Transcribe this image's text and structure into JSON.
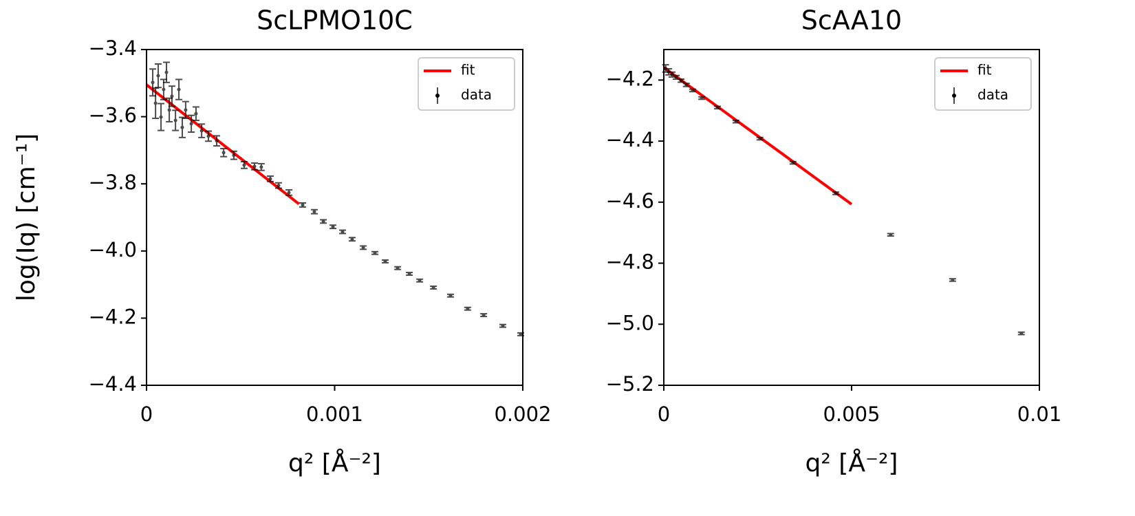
{
  "chart_data": [
    {
      "type": "scatter",
      "title": "ScLPMO10C",
      "xlabel": "q² [Å⁻²]",
      "ylabel": "log(Iq) [cm⁻¹]",
      "xlim": [
        0,
        0.002
      ],
      "xticks": [
        0,
        0.001,
        0.002
      ],
      "ylim": [
        -4.4,
        -3.4
      ],
      "yticks": [
        {
          "value": -4.4,
          "label": "−4.4"
        },
        {
          "value": -4.2,
          "label": "−4.2"
        },
        {
          "value": -4.0,
          "label": "−4.0"
        },
        {
          "value": -3.8,
          "label": "−3.8"
        },
        {
          "value": -3.6,
          "label": "−3.6"
        },
        {
          "value": -3.4,
          "label": "−3.4"
        }
      ],
      "legend": "upper right",
      "series": [
        {
          "name": "fit",
          "style": "line",
          "color": "#ff0000",
          "x": [
            0,
            0.00081
          ],
          "values": [
            -3.505,
            -3.86
          ]
        },
        {
          "name": "data",
          "style": "errorbar",
          "color": "#000000",
          "x": [
            3.3e-05,
            4.8e-05,
            6.2e-05,
            7.7e-05,
            9.1e-05,
            0.000106,
            0.000121,
            0.000135,
            0.000154,
            0.000172,
            0.00019,
            0.000208,
            0.000238,
            0.000263,
            0.000293,
            0.000329,
            0.000373,
            0.00041,
            0.000464,
            0.000519,
            0.000574,
            0.00061,
            0.000658,
            0.000702,
            0.000757,
            0.00083,
            0.000892,
            0.00094,
            0.000991,
            0.001042,
            0.001093,
            0.001152,
            0.001214,
            0.001269,
            0.001335,
            0.001397,
            0.001452,
            0.001525,
            0.001616,
            0.001707,
            0.001792,
            0.001894,
            0.001989
          ],
          "values": [
            -3.498,
            -3.56,
            -3.478,
            -3.601,
            -3.519,
            -3.468,
            -3.58,
            -3.539,
            -3.611,
            -3.519,
            -3.632,
            -3.58,
            -3.621,
            -3.591,
            -3.642,
            -3.658,
            -3.672,
            -3.707,
            -3.715,
            -3.744,
            -3.748,
            -3.75,
            -3.785,
            -3.805,
            -3.826,
            -3.863,
            -3.883,
            -3.912,
            -3.928,
            -3.943,
            -3.965,
            -3.99,
            -4.006,
            -4.031,
            -4.051,
            -4.068,
            -4.088,
            -4.109,
            -4.133,
            -4.172,
            -4.191,
            -4.223,
            -4.248
          ],
          "errors": [
            0.04,
            0.045,
            0.035,
            0.04,
            0.03,
            0.03,
            0.035,
            0.03,
            0.03,
            0.03,
            0.03,
            0.025,
            0.025,
            0.02,
            0.02,
            0.015,
            0.015,
            0.012,
            0.012,
            0.01,
            0.01,
            0.01,
            0.008,
            0.008,
            0.008,
            0.006,
            0.006,
            0.005,
            0.005,
            0.005,
            0.005,
            0.005,
            0.004,
            0.004,
            0.004,
            0.004,
            0.004,
            0.004,
            0.004,
            0.004,
            0.004,
            0.004,
            0.004
          ]
        }
      ]
    },
    {
      "type": "scatter",
      "title": "ScAA10",
      "xlabel": "q² [Å⁻²]",
      "xlim": [
        0,
        0.01
      ],
      "xticks": [
        0,
        0.005,
        0.01
      ],
      "ylim": [
        -5.2,
        -4.1
      ],
      "yticks": [
        {
          "value": -5.2,
          "label": "−5.2"
        },
        {
          "value": -5.0,
          "label": "−5.0"
        },
        {
          "value": -4.8,
          "label": "−4.8"
        },
        {
          "value": -4.6,
          "label": "−4.6"
        },
        {
          "value": -4.4,
          "label": "−4.4"
        },
        {
          "value": -4.2,
          "label": "−4.2"
        }
      ],
      "legend": "upper right",
      "series": [
        {
          "name": "fit",
          "style": "line",
          "color": "#ff0000",
          "x": [
            0,
            0.005
          ],
          "values": [
            -4.159,
            -4.607
          ]
        },
        {
          "name": "data",
          "style": "errorbar",
          "color": "#000000",
          "x": [
            5e-05,
            0.00013,
            0.00022,
            0.00033,
            0.00046,
            0.0006,
            0.00077,
            0.00101,
            0.00143,
            0.00192,
            0.00256,
            0.00344,
            0.00458,
            0.00604,
            0.00769,
            0.00952
          ],
          "values": [
            -4.162,
            -4.173,
            -4.182,
            -4.191,
            -4.202,
            -4.216,
            -4.234,
            -4.259,
            -4.29,
            -4.336,
            -4.392,
            -4.471,
            -4.571,
            -4.707,
            -4.855,
            -5.03
          ],
          "errors": [
            0.012,
            0.01,
            0.008,
            0.006,
            0.005,
            0.005,
            0.004,
            0.004,
            0.004,
            0.004,
            0.004,
            0.004,
            0.004,
            0.004,
            0.004,
            0.004
          ]
        }
      ]
    }
  ]
}
